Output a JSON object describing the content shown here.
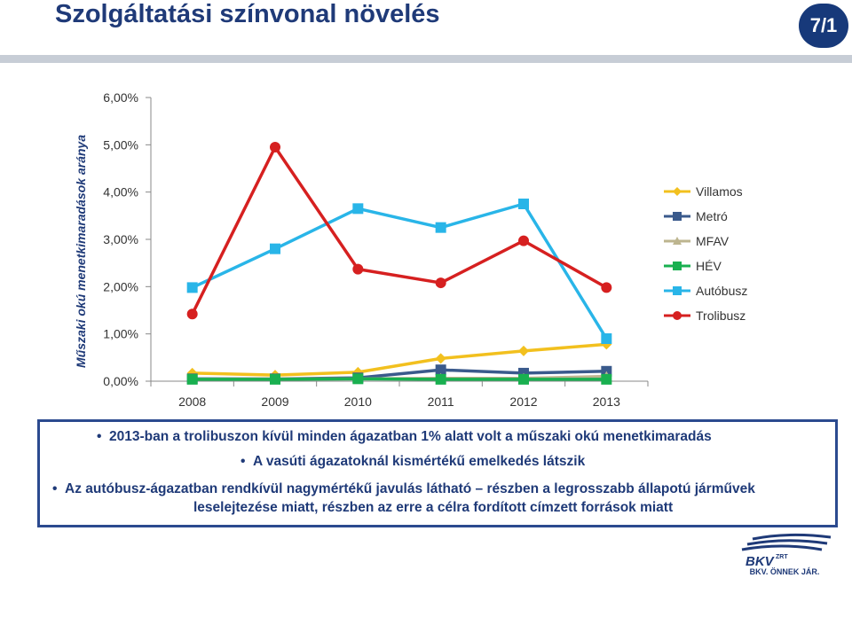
{
  "header": {
    "title": "Szolgáltatási színvonal növelés",
    "page_number": "7/1"
  },
  "chart_data": {
    "type": "line",
    "title": "",
    "xlabel": "",
    "ylabel": "Műszaki okú menetkimaradások aránya",
    "x": [
      "2008",
      "2009",
      "2010",
      "2011",
      "2012",
      "2013"
    ],
    "ylim": [
      0,
      6
    ],
    "yticks": [
      "0,00%",
      "1,00%",
      "2,00%",
      "3,00%",
      "4,00%",
      "5,00%",
      "6,00%"
    ],
    "legend_position": "right",
    "series": [
      {
        "name": "Villamos",
        "values": [
          0.17,
          0.13,
          0.19,
          0.48,
          0.64,
          0.78
        ],
        "color": "#f2c01e",
        "marker": "diamond"
      },
      {
        "name": "Metró",
        "values": [
          0.05,
          0.05,
          0.07,
          0.24,
          0.17,
          0.21
        ],
        "color": "#3a5a8c",
        "marker": "square"
      },
      {
        "name": "MFAV",
        "values": [
          0.04,
          0.05,
          0.05,
          0.06,
          0.06,
          0.1
        ],
        "color": "#bdb58f",
        "marker": "triangle"
      },
      {
        "name": "HÉV",
        "values": [
          0.04,
          0.04,
          0.05,
          0.04,
          0.04,
          0.04
        ],
        "color": "#19b050",
        "marker": "square"
      },
      {
        "name": "Autóbusz",
        "values": [
          1.98,
          2.8,
          3.65,
          3.25,
          3.75,
          0.9
        ],
        "color": "#29b5e8",
        "marker": "square"
      },
      {
        "name": "Trolibusz",
        "values": [
          1.42,
          4.95,
          2.37,
          2.08,
          2.97,
          1.98
        ],
        "color": "#d62020",
        "marker": "circle"
      }
    ]
  },
  "notes": [
    "2013-ban a trolibuszon kívül minden ágazatban 1% alatt volt a műszaki okú menetkimaradás",
    "A vasúti ágazatoknál kismértékű emelkedés látszik",
    "Az autóbusz-ágazatban rendkívül nagymértékű javulás látható – részben a legrosszabb állapotú járművek",
    "leselejtezése miatt, részben az erre a célra fordított címzett források miatt"
  ],
  "logo": {
    "brand": "BKV",
    "brand_suffix": "ZRT",
    "tagline": "BKV. ÖNNEK JÁR."
  }
}
